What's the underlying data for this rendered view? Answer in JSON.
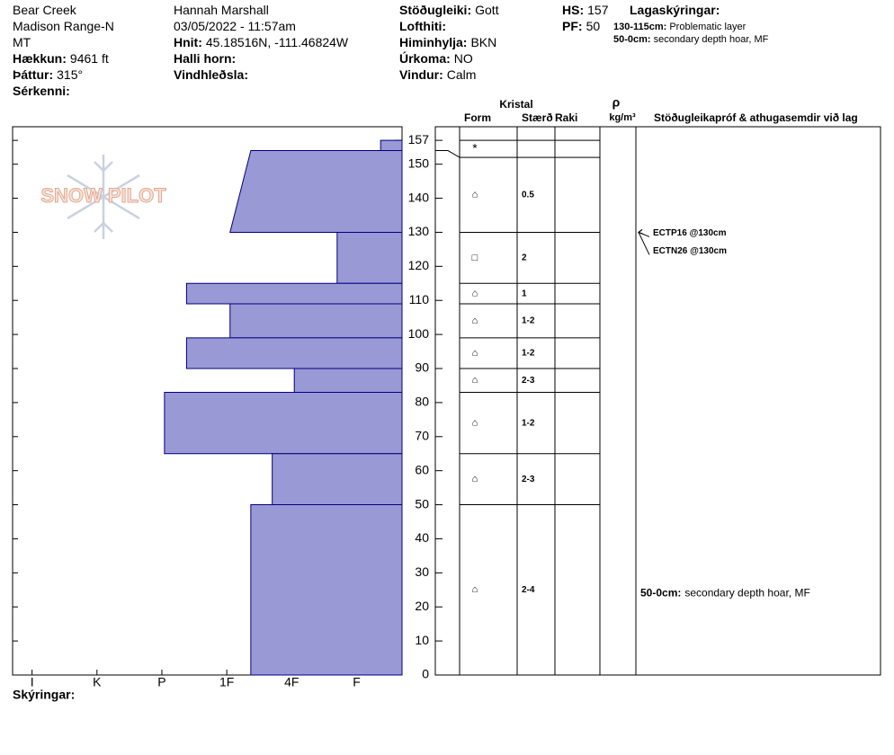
{
  "header": {
    "location": [
      "Bear Creek",
      "Madison Range-N",
      "MT"
    ],
    "elevation_label": "Hækkun:",
    "elevation": "9461 ft",
    "aspect_label": "Þáttur:",
    "aspect": "315°",
    "features_label": "Sérkenni:",
    "observer": "Hannah Marshall",
    "datetime": "03/05/2022 - 11:57am",
    "coords_label": "Hnit:",
    "coords": "45.18516N, -111.46824W",
    "slope_label": "Halli horn:",
    "wind_loading_label": "Vindhleðsla:",
    "stability_label": "Stöðugleiki:",
    "stability": "Gott",
    "air_temp_label": "Lofthiti:",
    "sky_label": "Himinhylja:",
    "sky": "BKN",
    "precip_label": "Úrkoma:",
    "precip": "NO",
    "wind_label": "Vindur:",
    "wind": "Calm",
    "hs_label": "HS:",
    "hs": 157,
    "pf_label": "PF:",
    "pf": 50,
    "legend_title": "Lagaskýringar:",
    "legend": [
      {
        "range": "130-115cm:",
        "text": "Problematic layer"
      },
      {
        "range": "50-0cm:",
        "text": "secondary depth hoar, MF"
      }
    ]
  },
  "logo": "SNOW PILOT",
  "columns": {
    "crystal": "Kristal",
    "form": "Form",
    "size": "Stærð",
    "moisture": "Raki",
    "density_symbol": "ρ",
    "density_unit": "kg/m³",
    "comments": "Stöðugleikapróf & athugasemdir við lag"
  },
  "footer": "Skýringar:",
  "chart_data": {
    "type": "bar",
    "color": "#9999d6",
    "ylim": [
      0,
      161
    ],
    "yticks": [
      0,
      10,
      20,
      30,
      40,
      50,
      60,
      70,
      80,
      90,
      100,
      110,
      120,
      130,
      140,
      150,
      157
    ],
    "xlim": [
      0.3,
      6.3
    ],
    "xticks": [
      {
        "value": 6,
        "label": "I"
      },
      {
        "value": 5,
        "label": "K"
      },
      {
        "value": 4,
        "label": "P"
      },
      {
        "value": 3,
        "label": "1F"
      },
      {
        "value": 2,
        "label": "4F"
      },
      {
        "value": 1,
        "label": "F"
      }
    ],
    "layers": [
      {
        "top": 157,
        "bottom": 154,
        "hardness": 0.63
      },
      {
        "top": 154,
        "bottom": 130,
        "hardness": 2.63,
        "hardness_bottom": 2.95
      },
      {
        "top": 130,
        "bottom": 115,
        "hardness": 1.3
      },
      {
        "top": 115,
        "bottom": 109,
        "hardness": 3.62
      },
      {
        "top": 109,
        "bottom": 99,
        "hardness": 2.95
      },
      {
        "top": 99,
        "bottom": 90,
        "hardness": 3.62
      },
      {
        "top": 90,
        "bottom": 83,
        "hardness": 1.96
      },
      {
        "top": 83,
        "bottom": 65,
        "hardness": 3.96
      },
      {
        "top": 65,
        "bottom": 50,
        "hardness": 2.3
      },
      {
        "top": 50,
        "bottom": 0,
        "hardness": 2.63
      }
    ],
    "grains": [
      {
        "top": 157,
        "bottom": 152,
        "form": "*"
      },
      {
        "top": 152,
        "bottom": 130,
        "form": "⌂",
        "size": "0.5"
      },
      {
        "top": 130,
        "bottom": 115,
        "form": "□",
        "size": "2"
      },
      {
        "top": 115,
        "bottom": 109,
        "form": "⌂",
        "size": "1"
      },
      {
        "top": 109,
        "bottom": 99,
        "form": "⌂",
        "size": "1-2"
      },
      {
        "top": 99,
        "bottom": 90,
        "form": "⌂",
        "size": "1-2"
      },
      {
        "top": 90,
        "bottom": 83,
        "form": "⌂",
        "size": "2-3"
      },
      {
        "top": 83,
        "bottom": 65,
        "form": "⌂",
        "size": "1-2"
      },
      {
        "top": 65,
        "bottom": 50,
        "form": "⌂",
        "size": "2-3"
      },
      {
        "top": 50,
        "bottom": 0,
        "form": "⌂",
        "size": "2-4",
        "comment_range": "50-0cm:",
        "comment": "secondary depth hoar, MF"
      }
    ],
    "tests": [
      {
        "depth": 130,
        "text": "ECTP16 @130cm"
      },
      {
        "depth": 130,
        "text": "ECTN26 @130cm"
      }
    ]
  }
}
